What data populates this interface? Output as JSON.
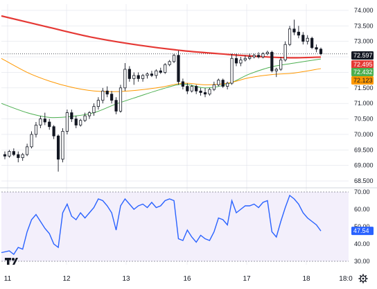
{
  "colors": {
    "candle_up": "#ffffff",
    "candle_down": "#131722",
    "candle_wick": "#131722",
    "ma_red": "#e53935",
    "ma_green": "#4caf50",
    "ma_orange": "#ff9800",
    "rsi_line": "#2962ff",
    "rsi_band": "#f3effb",
    "grid": "#e0e3eb",
    "last_price_tag": "#131722"
  },
  "icons": {
    "logo": "tradingview-logo-icon",
    "settings": "gear-icon"
  },
  "chart_data": [
    {
      "type": "candlestick",
      "price_axis": {
        "ticks": [
          "74.000",
          "73.500",
          "73.000",
          "72.500",
          "72.000",
          "71.500",
          "71.000",
          "70.500",
          "70.000",
          "69.500",
          "69.000",
          "68.500"
        ],
        "range": [
          68.3,
          74.2
        ]
      },
      "time_axis": {
        "ticks": [
          "11",
          "12",
          "13",
          "16",
          "17",
          "18",
          "18:0"
        ]
      },
      "last_values": [
        {
          "name": "last-price",
          "value": "72.597",
          "bg": "#131722",
          "fg": "#ffffff"
        },
        {
          "name": "ma-red",
          "value": "72.495",
          "bg": "#e53935",
          "fg": "#ffffff"
        },
        {
          "name": "ma-green",
          "value": "72.432",
          "bg": "#4caf50",
          "fg": "#ffffff"
        },
        {
          "name": "ma-orange",
          "value": "72.123",
          "bg": "#ff9800",
          "fg": "#131722"
        }
      ],
      "candles": [
        [
          69.35,
          69.45,
          69.2,
          69.3
        ],
        [
          69.3,
          69.5,
          69.25,
          69.45
        ],
        [
          69.45,
          69.55,
          69.3,
          69.35
        ],
        [
          69.35,
          69.45,
          69.1,
          69.25
        ],
        [
          69.25,
          69.4,
          69.15,
          69.35
        ],
        [
          69.35,
          69.7,
          69.3,
          69.6
        ],
        [
          69.6,
          70.1,
          69.55,
          70.0
        ],
        [
          70.0,
          70.4,
          69.9,
          70.3
        ],
        [
          70.3,
          70.6,
          70.2,
          70.5
        ],
        [
          70.5,
          70.7,
          70.3,
          70.4
        ],
        [
          70.4,
          70.5,
          70.15,
          70.25
        ],
        [
          70.25,
          70.3,
          69.85,
          69.95
        ],
        [
          69.95,
          70.0,
          68.8,
          69.2
        ],
        [
          69.2,
          70.2,
          69.1,
          70.1
        ],
        [
          70.1,
          70.8,
          70.0,
          70.7
        ],
        [
          70.7,
          70.8,
          70.4,
          70.5
        ],
        [
          70.5,
          70.6,
          70.2,
          70.3
        ],
        [
          70.3,
          70.5,
          70.25,
          70.45
        ],
        [
          70.45,
          70.7,
          70.4,
          70.6
        ],
        [
          70.6,
          70.75,
          70.5,
          70.7
        ],
        [
          70.7,
          71.0,
          70.6,
          70.9
        ],
        [
          70.9,
          71.2,
          70.8,
          71.1
        ],
        [
          71.1,
          71.5,
          71.0,
          71.4
        ],
        [
          71.4,
          71.55,
          71.2,
          71.3
        ],
        [
          71.3,
          71.4,
          71.0,
          71.1
        ],
        [
          71.1,
          71.2,
          70.65,
          70.75
        ],
        [
          70.75,
          71.6,
          70.7,
          71.5
        ],
        [
          71.5,
          72.3,
          71.4,
          72.1
        ],
        [
          72.1,
          72.2,
          71.7,
          71.8
        ],
        [
          71.8,
          72.0,
          71.6,
          71.9
        ],
        [
          71.9,
          72.0,
          71.7,
          71.8
        ],
        [
          71.8,
          71.95,
          71.7,
          71.9
        ],
        [
          71.9,
          72.0,
          71.8,
          71.95
        ],
        [
          71.95,
          72.05,
          71.85,
          71.9
        ],
        [
          71.9,
          72.1,
          71.8,
          72.05
        ],
        [
          72.05,
          72.15,
          71.95,
          72.0
        ],
        [
          72.0,
          72.3,
          71.95,
          72.25
        ],
        [
          72.25,
          72.4,
          72.2,
          72.35
        ],
        [
          72.35,
          72.6,
          72.3,
          72.55
        ],
        [
          72.55,
          72.7,
          71.6,
          71.7
        ],
        [
          71.7,
          71.8,
          71.45,
          71.55
        ],
        [
          71.55,
          71.65,
          71.3,
          71.4
        ],
        [
          71.4,
          71.6,
          71.35,
          71.55
        ],
        [
          71.55,
          71.6,
          71.3,
          71.4
        ],
        [
          71.4,
          71.5,
          71.25,
          71.35
        ],
        [
          71.35,
          71.5,
          71.2,
          71.3
        ],
        [
          71.3,
          71.5,
          71.25,
          71.45
        ],
        [
          71.45,
          71.7,
          71.4,
          71.6
        ],
        [
          71.6,
          71.8,
          71.55,
          71.75
        ],
        [
          71.75,
          71.8,
          71.5,
          71.55
        ],
        [
          71.55,
          71.7,
          71.45,
          71.65
        ],
        [
          71.65,
          72.6,
          71.6,
          72.45
        ],
        [
          72.45,
          72.6,
          72.2,
          72.3
        ],
        [
          72.3,
          72.5,
          72.2,
          72.4
        ],
        [
          72.4,
          72.55,
          72.35,
          72.45
        ],
        [
          72.45,
          72.6,
          72.4,
          72.5
        ],
        [
          72.5,
          72.6,
          72.45,
          72.55
        ],
        [
          72.55,
          72.65,
          72.45,
          72.5
        ],
        [
          72.5,
          72.65,
          72.45,
          72.6
        ],
        [
          72.6,
          72.7,
          72.55,
          72.65
        ],
        [
          72.65,
          72.7,
          72.0,
          72.05
        ],
        [
          72.05,
          72.15,
          71.85,
          72.1
        ],
        [
          72.1,
          72.5,
          72.05,
          72.4
        ],
        [
          72.4,
          73.0,
          72.35,
          72.9
        ],
        [
          72.9,
          73.5,
          72.85,
          73.4
        ],
        [
          73.4,
          73.7,
          73.2,
          73.3
        ],
        [
          73.3,
          73.5,
          73.1,
          73.2
        ],
        [
          73.2,
          73.3,
          72.9,
          73.0
        ],
        [
          73.0,
          73.2,
          72.9,
          73.1
        ],
        [
          73.1,
          73.15,
          72.75,
          72.8
        ],
        [
          72.8,
          72.9,
          72.65,
          72.75
        ],
        [
          72.75,
          72.8,
          72.55,
          72.6
        ]
      ],
      "moving_averages": [
        {
          "name": "ma-red",
          "color": "#e53935",
          "width": 2.2,
          "points": [
            [
              0,
              73.82
            ],
            [
              10,
              73.45
            ],
            [
              20,
              73.12
            ],
            [
              30,
              72.88
            ],
            [
              40,
              72.7
            ],
            [
              50,
              72.58
            ],
            [
              55,
              72.53
            ],
            [
              60,
              72.49
            ],
            [
              65,
              72.47
            ],
            [
              71,
              72.495
            ]
          ]
        },
        {
          "name": "ma-green",
          "color": "#4caf50",
          "width": 1,
          "points": [
            [
              0,
              71.0
            ],
            [
              5,
              70.7
            ],
            [
              10,
              70.55
            ],
            [
              15,
              70.58
            ],
            [
              20,
              70.7
            ],
            [
              25,
              70.98
            ],
            [
              30,
              71.22
            ],
            [
              35,
              71.45
            ],
            [
              40,
              71.62
            ],
            [
              45,
              71.5
            ],
            [
              50,
              71.62
            ],
            [
              55,
              71.95
            ],
            [
              60,
              72.18
            ],
            [
              65,
              72.3
            ],
            [
              71,
              72.432
            ]
          ]
        },
        {
          "name": "ma-orange",
          "color": "#ff9800",
          "width": 1,
          "points": [
            [
              0,
              72.45
            ],
            [
              5,
              72.0
            ],
            [
              10,
              71.72
            ],
            [
              15,
              71.52
            ],
            [
              20,
              71.4
            ],
            [
              25,
              71.38
            ],
            [
              30,
              71.43
            ],
            [
              35,
              71.52
            ],
            [
              40,
              71.65
            ],
            [
              45,
              71.6
            ],
            [
              50,
              71.65
            ],
            [
              55,
              71.83
            ],
            [
              60,
              71.93
            ],
            [
              65,
              71.98
            ],
            [
              71,
              72.123
            ]
          ]
        }
      ]
    },
    {
      "type": "line",
      "name": "rsi",
      "y_ticks": [
        "70.00",
        "60.00",
        "50.00",
        "40.00",
        "30.00"
      ],
      "range": [
        28,
        72
      ],
      "band": [
        30,
        70
      ],
      "last_value": {
        "value": "47.54",
        "bg": "#2962ff",
        "fg": "#ffffff"
      },
      "values": [
        35,
        36,
        34,
        38,
        37,
        47,
        54,
        57,
        53,
        49,
        46,
        40,
        38,
        58,
        63,
        56,
        54,
        58,
        55,
        58,
        61,
        66,
        65,
        62,
        58,
        48,
        62,
        66,
        63,
        60,
        62,
        63,
        61,
        64,
        61,
        62,
        65,
        66,
        65,
        43,
        42,
        48,
        44,
        41,
        45,
        43,
        42,
        47,
        55,
        54,
        51,
        65,
        58,
        60,
        62,
        62,
        63,
        61,
        64,
        65,
        47,
        44,
        53,
        61,
        68,
        66,
        63,
        58,
        55,
        53,
        51,
        47.5
      ]
    }
  ]
}
